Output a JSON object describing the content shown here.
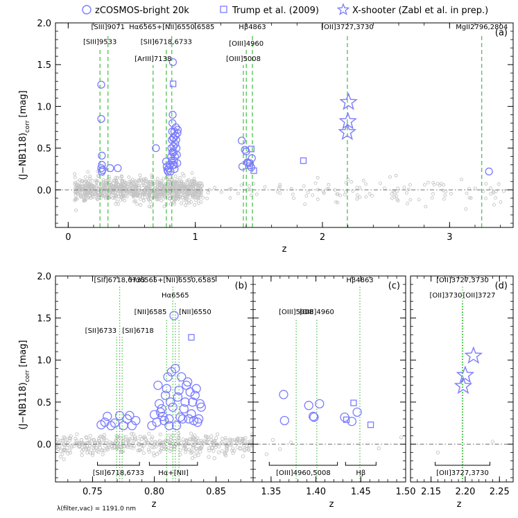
{
  "chart_data": {
    "type": "scatter",
    "legend": {
      "placement": "top",
      "entries": [
        {
          "label": "zCOSMOS-bright 20k",
          "marker": "circle"
        },
        {
          "label": "Trump et al. (2009)",
          "marker": "square"
        },
        {
          "label": "X-shooter (Zabl et al. in prep.)",
          "marker": "star"
        }
      ]
    },
    "colors": {
      "highlight": "#7b7bff",
      "background": "#c4c4c4",
      "lines": "#2db82d",
      "zero_line": "#707070"
    },
    "ylabel": "(J−NB118)",
    "ylabel_sub": "corr",
    "ylabel_unit": " [mag]",
    "xlabel": "z",
    "footnote": "λ(filter,vac) = 1191.0 nm",
    "panels": [
      {
        "id": "a",
        "tag": "(a)",
        "xlim": [
          -0.1,
          3.5
        ],
        "ylim": [
          -0.45,
          2.0
        ],
        "xticks": [
          "0",
          "1",
          "2",
          "3"
        ],
        "xtick_values": [
          0,
          1,
          2,
          3
        ],
        "yticks": [
          "0.0",
          "0.5",
          "1.0",
          "1.5",
          "2.0"
        ],
        "ytick_values": [
          0.0,
          0.5,
          1.0,
          1.5,
          2.0
        ],
        "lines": [
          {
            "label": "[SIII]9071",
            "z": 0.313,
            "ly": 1.925
          },
          {
            "label": "[SIII]9533",
            "z": 0.25,
            "ly": 1.745
          },
          {
            "label": "[SII]6718,6733",
            "z": 0.772,
            "ly": 1.745
          },
          {
            "label": "Hα6565+[NII]6550,6585",
            "z": 0.815,
            "ly": 1.925
          },
          {
            "label": "[ArIII]7138",
            "z": 0.668,
            "ly": 1.545
          },
          {
            "label": "Hβ4863",
            "z": 1.449,
            "ly": 1.925
          },
          {
            "label": "[OIII]4960",
            "z": 1.401,
            "ly": 1.725
          },
          {
            "label": "[OIII]5008",
            "z": 1.378,
            "ly": 1.545
          },
          {
            "label": "[OII]3727,3730",
            "z": 2.196,
            "ly": 1.925
          },
          {
            "label": "MgII2796,2804",
            "z": 3.253,
            "ly": 1.925
          }
        ],
        "zcosmos": [
          [
            0.26,
            1.26
          ],
          [
            0.26,
            0.85
          ],
          [
            0.265,
            0.41
          ],
          [
            0.265,
            0.3
          ],
          [
            0.26,
            0.26
          ],
          [
            0.27,
            0.24
          ],
          [
            0.265,
            0.22
          ],
          [
            0.33,
            0.26
          ],
          [
            0.39,
            0.26
          ],
          [
            0.69,
            0.5
          ],
          [
            0.77,
            0.34
          ],
          [
            0.775,
            0.28
          ],
          [
            0.78,
            0.24
          ],
          [
            0.785,
            0.22
          ],
          [
            0.79,
            0.26
          ],
          [
            0.8,
            0.3
          ],
          [
            0.805,
            0.22
          ],
          [
            0.81,
            0.4
          ],
          [
            0.812,
            0.5
          ],
          [
            0.815,
            0.6
          ],
          [
            0.818,
            0.7
          ],
          [
            0.82,
            0.8
          ],
          [
            0.822,
            0.9
          ],
          [
            0.824,
            1.53
          ],
          [
            0.826,
            0.62
          ],
          [
            0.828,
            0.52
          ],
          [
            0.83,
            0.45
          ],
          [
            0.832,
            0.35
          ],
          [
            0.835,
            0.3
          ],
          [
            0.837,
            0.25
          ],
          [
            0.84,
            0.4
          ],
          [
            0.842,
            0.55
          ],
          [
            0.845,
            0.65
          ],
          [
            0.847,
            0.75
          ],
          [
            0.85,
            0.6
          ],
          [
            0.852,
            0.5
          ],
          [
            0.855,
            0.42
          ],
          [
            0.858,
            0.32
          ],
          [
            0.86,
            0.68
          ],
          [
            0.862,
            0.72
          ],
          [
            0.815,
            0.35
          ],
          [
            0.82,
            0.45
          ],
          [
            0.825,
            0.3
          ],
          [
            0.83,
            0.62
          ],
          [
            0.835,
            0.7
          ],
          [
            1.365,
            0.59
          ],
          [
            1.37,
            0.28
          ],
          [
            1.39,
            0.48
          ],
          [
            1.4,
            0.46
          ],
          [
            1.41,
            0.33
          ],
          [
            1.415,
            0.32
          ],
          [
            1.43,
            0.32
          ],
          [
            1.44,
            0.27
          ],
          [
            1.445,
            0.38
          ],
          [
            3.31,
            0.22
          ]
        ],
        "trump": [
          [
            0.825,
            1.27
          ],
          [
            1.43,
            0.29
          ],
          [
            1.44,
            0.49
          ],
          [
            1.46,
            0.23
          ],
          [
            1.85,
            0.35
          ]
        ],
        "xshooter": [
          [
            2.205,
            1.05
          ],
          [
            2.2,
            0.82
          ],
          [
            2.195,
            0.69
          ]
        ]
      },
      {
        "id": "b",
        "tag": "(b)",
        "xlim": [
          0.72,
          0.88
        ],
        "ylim": [
          -0.45,
          2.0
        ],
        "xticks": [
          "0.75",
          "0.80",
          "0.85"
        ],
        "xtick_values": [
          0.75,
          0.8,
          0.85
        ],
        "yticks": [
          "0.0",
          "0.5",
          "1.0",
          "1.5",
          "2.0"
        ],
        "ytick_values": [
          0.0,
          0.5,
          1.0,
          1.5,
          2.0
        ],
        "lines": [
          {
            "label": "[SII]6718,6733",
            "z": 0.772,
            "ly": 1.925
          },
          {
            "label": "Hα6565+[NII]6550,6585",
            "z": 0.815,
            "ly": 1.925
          },
          {
            "label": "Hα6565",
            "z": 0.817,
            "ly": 1.745
          },
          {
            "label": "[NII]6585",
            "z": 0.81,
            "ly": 1.545
          },
          {
            "label": "[NII]6550",
            "z": 0.82,
            "ly": 1.545
          },
          {
            "label": "[SII]6733",
            "z": 0.7695,
            "ly": 1.325
          },
          {
            "label": "[SII]6718",
            "z": 0.774,
            "ly": 1.325
          }
        ],
        "brackets": [
          {
            "label": "[SII]6718,6733",
            "x0": 0.754,
            "x1": 0.788
          },
          {
            "label": "Hα+[NII]",
            "x0": 0.796,
            "x1": 0.835
          }
        ],
        "zcosmos": [
          [
            0.757,
            0.23
          ],
          [
            0.76,
            0.26
          ],
          [
            0.762,
            0.33
          ],
          [
            0.765,
            0.22
          ],
          [
            0.768,
            0.25
          ],
          [
            0.772,
            0.34
          ],
          [
            0.775,
            0.22
          ],
          [
            0.778,
            0.3
          ],
          [
            0.78,
            0.34
          ],
          [
            0.782,
            0.22
          ],
          [
            0.785,
            0.28
          ],
          [
            0.798,
            0.22
          ],
          [
            0.8,
            0.35
          ],
          [
            0.802,
            0.26
          ],
          [
            0.803,
            0.7
          ],
          [
            0.805,
            0.38
          ],
          [
            0.806,
            0.42
          ],
          [
            0.808,
            0.28
          ],
          [
            0.809,
            0.58
          ],
          [
            0.81,
            0.66
          ],
          [
            0.811,
            0.8
          ],
          [
            0.812,
            0.3
          ],
          [
            0.813,
            0.5
          ],
          [
            0.814,
            0.86
          ],
          [
            0.815,
            0.44
          ],
          [
            0.816,
            1.53
          ],
          [
            0.817,
            0.9
          ],
          [
            0.818,
            0.22
          ],
          [
            0.819,
            0.56
          ],
          [
            0.82,
            0.64
          ],
          [
            0.821,
            0.32
          ],
          [
            0.822,
            0.8
          ],
          [
            0.823,
            0.3
          ],
          [
            0.824,
            0.42
          ],
          [
            0.825,
            0.5
          ],
          [
            0.826,
            0.7
          ],
          [
            0.827,
            0.74
          ],
          [
            0.828,
            0.3
          ],
          [
            0.829,
            0.62
          ],
          [
            0.83,
            0.36
          ],
          [
            0.831,
            0.5
          ],
          [
            0.832,
            0.28
          ],
          [
            0.833,
            0.58
          ],
          [
            0.834,
            0.66
          ],
          [
            0.835,
            0.26
          ],
          [
            0.836,
            0.3
          ],
          [
            0.837,
            0.48
          ],
          [
            0.838,
            0.44
          ],
          [
            0.812,
            0.22
          ],
          [
            0.807,
            0.33
          ],
          [
            0.804,
            0.48
          ]
        ],
        "trump": [
          [
            0.83,
            1.27
          ]
        ]
      },
      {
        "id": "c",
        "tag": "(c)",
        "xlim": [
          1.33,
          1.5
        ],
        "ylim": [
          -0.45,
          2.0
        ],
        "xticks": [
          "1.35",
          "1.40",
          "1.45",
          "1.50"
        ],
        "xtick_values": [
          1.35,
          1.4,
          1.45,
          1.5
        ],
        "yticks": [],
        "ytick_values": [],
        "lines": [
          {
            "label": "[OIII]5008",
            "z": 1.378,
            "ly": 1.545
          },
          {
            "label": "[OIII]4960",
            "z": 1.401,
            "ly": 1.545
          },
          {
            "label": "Hβ4863",
            "z": 1.449,
            "ly": 1.925
          }
        ],
        "brackets": [
          {
            "label": "[OIII]4960,5008",
            "x0": 1.348,
            "x1": 1.424
          },
          {
            "label": "Hβ",
            "x0": 1.433,
            "x1": 1.467
          }
        ],
        "zcosmos": [
          [
            1.364,
            0.59
          ],
          [
            1.365,
            0.28
          ],
          [
            1.392,
            0.46
          ],
          [
            1.397,
            0.33
          ],
          [
            1.398,
            0.32
          ],
          [
            1.404,
            0.48
          ],
          [
            1.432,
            0.32
          ],
          [
            1.44,
            0.27
          ],
          [
            1.446,
            0.38
          ]
        ],
        "trump": [
          [
            1.434,
            0.29
          ],
          [
            1.442,
            0.49
          ],
          [
            1.461,
            0.23
          ]
        ]
      },
      {
        "id": "d",
        "tag": "(d)",
        "xlim": [
          2.12,
          2.27
        ],
        "ylim": [
          -0.45,
          2.0
        ],
        "xticks": [
          "2.15",
          "2.20",
          "2.25"
        ],
        "xtick_values": [
          2.15,
          2.2,
          2.25
        ],
        "yticks": [],
        "ytick_values": [],
        "lines": [
          {
            "label": "[OII]3727,3730",
            "z": 2.196,
            "ly": 1.925
          },
          {
            "label": "[OII]3730",
            "z": 2.1955,
            "ly": 1.745
          },
          {
            "label": "[OII]3727",
            "z": 2.1965,
            "ly": 1.745
          }
        ],
        "brackets": [
          {
            "label": "[OII]3727,3730",
            "x0": 2.156,
            "x1": 2.236
          }
        ],
        "zcosmos": [],
        "trump": [],
        "xshooter": [
          [
            2.212,
            1.05
          ],
          [
            2.2,
            0.82
          ],
          [
            2.197,
            0.69
          ]
        ]
      }
    ]
  }
}
